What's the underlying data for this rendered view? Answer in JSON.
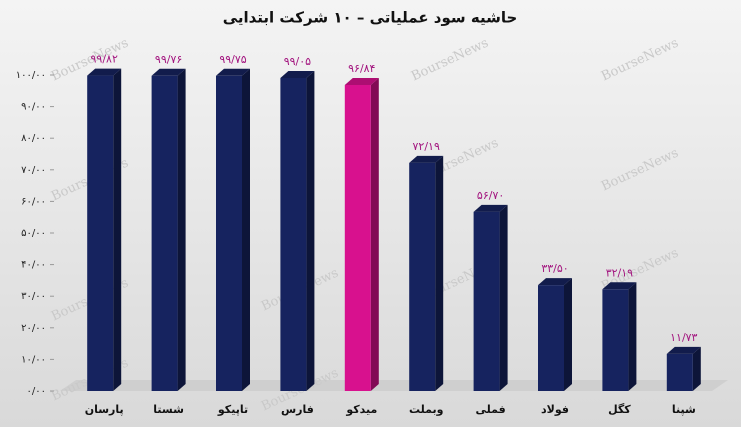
{
  "chart_data": {
    "type": "bar3d",
    "title": "حاشیه سود عملیاتی – ۱۰ شرکت ابتدایی",
    "watermark": "BourseNews",
    "categories": [
      "پارسان",
      "شستا",
      "تاپیکو",
      "فارس",
      "میدکو",
      "وبملت",
      "فملی",
      "فولاد",
      "کگل",
      "شپنا"
    ],
    "values": [
      99.82,
      99.76,
      99.75,
      99.05,
      96.84,
      72.19,
      56.7,
      33.5,
      32.19,
      11.73
    ],
    "value_labels": [
      "۹۹/۸۲",
      "۹۹/۷۶",
      "۹۹/۷۵",
      "۹۹/۰۵",
      "۹۶/۸۴",
      "۷۲/۱۹",
      "۵۶/۷۰",
      "۳۳/۵۰",
      "۳۲/۱۹",
      "۱۱/۷۳"
    ],
    "colors": [
      "#16235f",
      "#16235f",
      "#16235f",
      "#16235f",
      "#d8118e",
      "#16235f",
      "#16235f",
      "#16235f",
      "#16235f",
      "#16235f"
    ],
    "value_label_color": "#a3157f",
    "ylim": [
      0,
      100
    ],
    "yticks": [
      {
        "value": 0,
        "label": "۰/۰۰"
      },
      {
        "value": 10,
        "label": "۱۰/۰۰"
      },
      {
        "value": 20,
        "label": "۲۰/۰۰"
      },
      {
        "value": 30,
        "label": "۳۰/۰۰"
      },
      {
        "value": 40,
        "label": "۴۰/۰۰"
      },
      {
        "value": 50,
        "label": "۵۰/۰۰"
      },
      {
        "value": 60,
        "label": "۶۰/۰۰"
      },
      {
        "value": 70,
        "label": "۷۰/۰۰"
      },
      {
        "value": 80,
        "label": "۸۰/۰۰"
      },
      {
        "value": 90,
        "label": "۹۰/۰۰"
      },
      {
        "value": 100,
        "label": "۱۰۰/۰۰"
      }
    ],
    "grid": false
  }
}
